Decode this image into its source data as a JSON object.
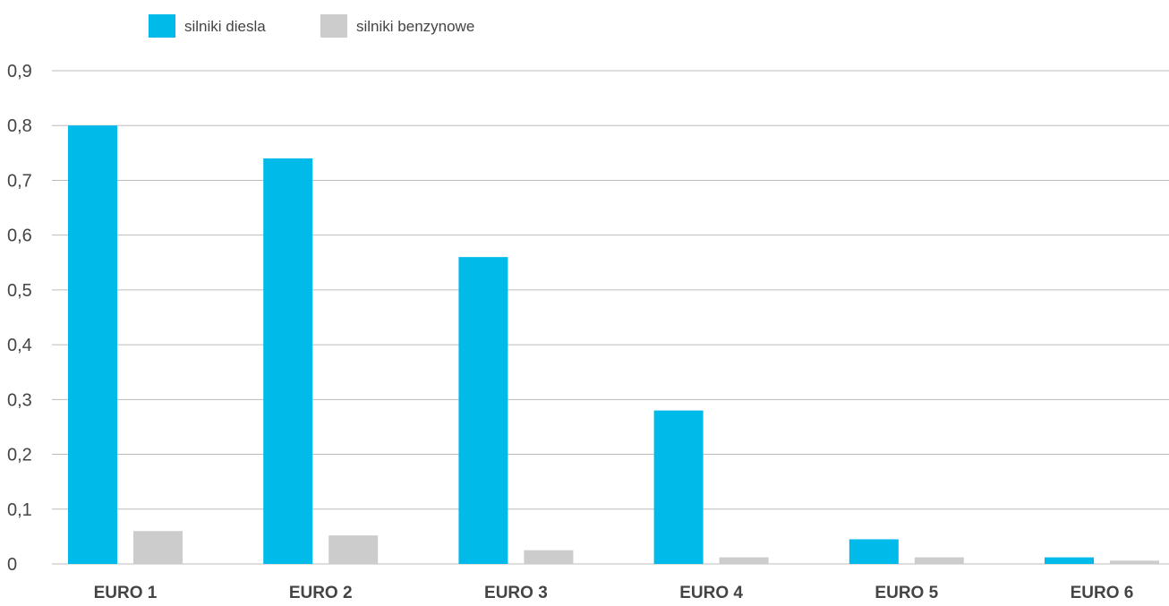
{
  "chart_data": {
    "type": "bar",
    "title": "",
    "xlabel": "",
    "ylabel": "",
    "categories": [
      "EURO 1",
      "EURO 2",
      "EURO 3",
      "EURO 4",
      "EURO 5",
      "EURO 6"
    ],
    "series": [
      {
        "name": "silniki diesla",
        "color": "#00bbea",
        "values": [
          0.8,
          0.74,
          0.56,
          0.28,
          0.045,
          0.012
        ]
      },
      {
        "name": "silniki benzynowe",
        "color": "#cccccc",
        "values": [
          0.06,
          0.052,
          0.025,
          0.012,
          0.012,
          0.006
        ]
      }
    ],
    "ylim": [
      0,
      0.9
    ],
    "yticks": [
      "0",
      "0,1",
      "0,2",
      "0,3",
      "0,4",
      "0,5",
      "0,6",
      "0,7",
      "0,8",
      "0,9"
    ],
    "grid": true,
    "legend_position": "top-left"
  }
}
